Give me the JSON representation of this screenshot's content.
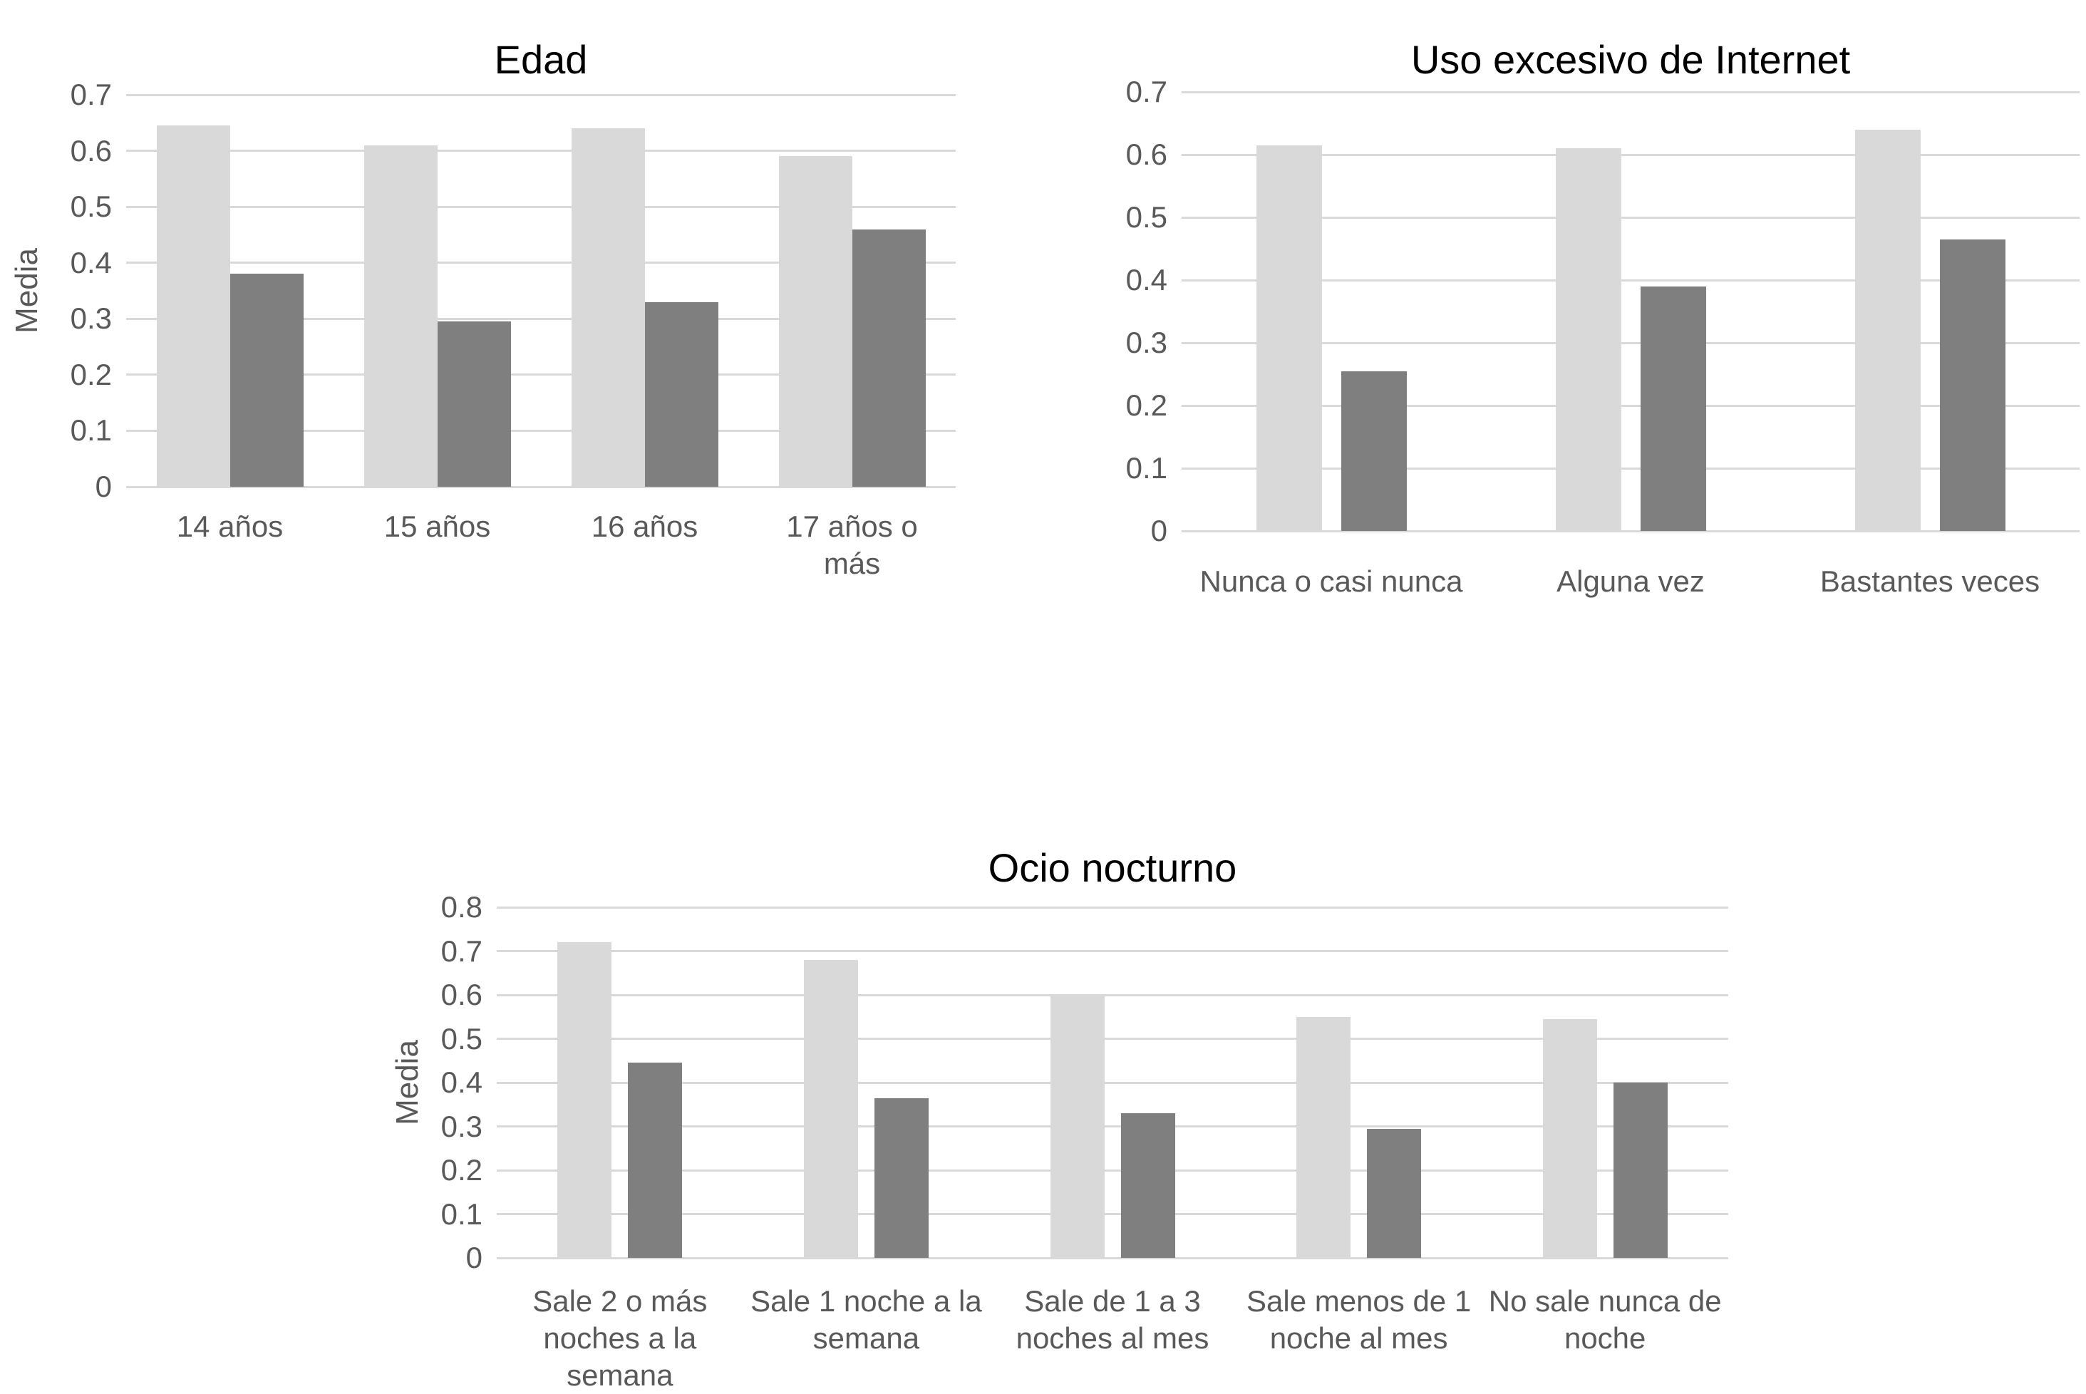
{
  "page": {
    "background": "#ffffff"
  },
  "colors": {
    "light_bar": "#d9d9d9",
    "dark_bar": "#7f7f7f",
    "gridline": "#d9d9d9",
    "axis_text": "#595959",
    "title_text": "#000000"
  },
  "chart_data": [
    {
      "type": "bar",
      "title": "Edad",
      "ylabel": "Media",
      "xlabel": "",
      "categories": [
        "14 años",
        "15 años",
        "16 años",
        "17 años o más"
      ],
      "series": [
        {
          "name": "light",
          "values": [
            0.645,
            0.61,
            0.64,
            0.59
          ]
        },
        {
          "name": "dark",
          "values": [
            0.38,
            0.295,
            0.33,
            0.46
          ]
        }
      ],
      "ylim": [
        0,
        0.7
      ],
      "ytick_step": 0.1,
      "yticks": [
        "0.7",
        "0.6",
        "0.5",
        "0.4",
        "0.3",
        "0.2",
        "0.1",
        "0"
      ],
      "grid": true,
      "legend": "none"
    },
    {
      "type": "bar",
      "title": "Uso excesivo de Internet",
      "ylabel": "",
      "xlabel": "",
      "categories": [
        "Nunca o casi nunca",
        "Alguna vez",
        "Bastantes veces"
      ],
      "series": [
        {
          "name": "light",
          "values": [
            0.615,
            0.61,
            0.64
          ]
        },
        {
          "name": "dark",
          "values": [
            0.255,
            0.39,
            0.465
          ]
        }
      ],
      "ylim": [
        0,
        0.7
      ],
      "ytick_step": 0.1,
      "yticks": [
        "0.7",
        "0.6",
        "0.5",
        "0.4",
        "0.3",
        "0.2",
        "0.1",
        "0"
      ],
      "grid": true,
      "legend": "none"
    },
    {
      "type": "bar",
      "title": "Ocio nocturno",
      "ylabel": "Media",
      "xlabel": "",
      "categories": [
        "Sale 2 o más noches a la semana",
        "Sale 1 noche a la semana",
        "Sale de 1 a 3 noches al mes",
        "Sale menos de 1 noche al mes",
        "No sale nunca de noche"
      ],
      "series": [
        {
          "name": "light",
          "values": [
            0.72,
            0.68,
            0.6,
            0.55,
            0.545
          ]
        },
        {
          "name": "dark",
          "values": [
            0.445,
            0.365,
            0.33,
            0.295,
            0.4
          ]
        }
      ],
      "ylim": [
        0,
        0.8
      ],
      "ytick_step": 0.1,
      "yticks": [
        "0.8",
        "0.7",
        "0.6",
        "0.5",
        "0.4",
        "0.3",
        "0.2",
        "0.1",
        "0"
      ],
      "grid": true,
      "legend": "none"
    }
  ]
}
